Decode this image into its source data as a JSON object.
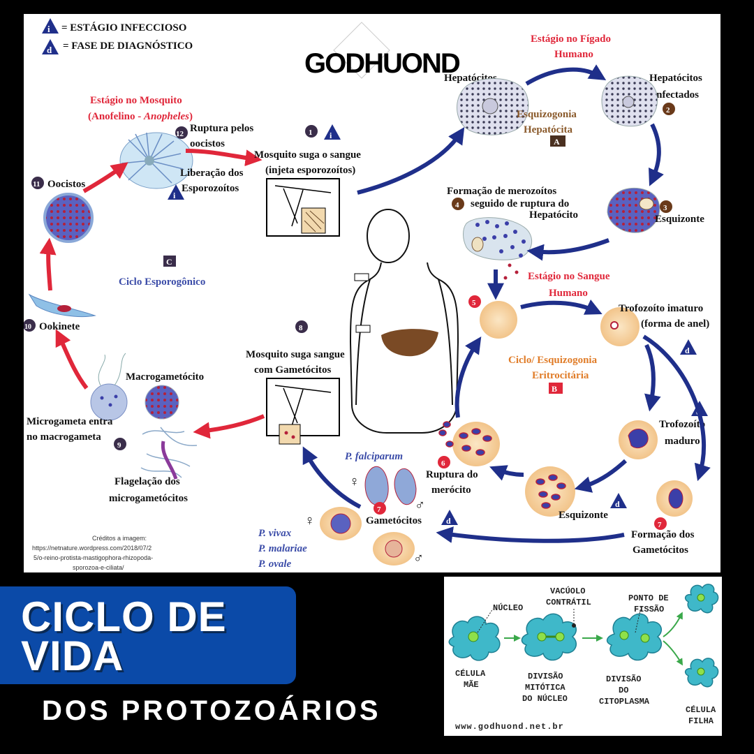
{
  "legend": {
    "infectious": "= ESTÁGIO INFECCIOSO",
    "diagnostic": "= FASE DE DIAGNÓSTICO",
    "i_glyph": "i",
    "d_glyph": "d"
  },
  "logo": "GODHUOND",
  "mosquito_stage": {
    "title": "Estágio no Mosquito",
    "subtitle_prefix": "(Anofelino - ",
    "subtitle_italic": "Anopheles",
    "subtitle_suffix": ")"
  },
  "liver_stage": {
    "line1": "Estágio no Fígado",
    "line2": "Humano"
  },
  "blood_stage": {
    "line1": "Estágio no Sangue",
    "line2": "Humano"
  },
  "labels": {
    "hepatocitos": "Hepatócitos",
    "hepatocitos_inf_1": "Hepatócitos",
    "hepatocitos_inf_2": "infectados",
    "esquizogonia_1": "Esquizogonia",
    "esquizogonia_2": "Hepatócita",
    "marker_a": "A",
    "merozoitos_1": "Formação de merozoítos",
    "merozoitos_2": "seguido de ruptura do",
    "merozoitos_3": "Hepatócito",
    "esquizonte": "Esquizonte",
    "suga_1": "Mosquito suga o sangue",
    "suga_2": "(injeta esporozoítos)",
    "ruptura_oocistos_1": "Ruptura pelos",
    "ruptura_oocistos_2": "oocistos",
    "liberacao_1": "Liberação dos",
    "liberacao_2": "Esporozoítos",
    "oocistos": "Oocistos",
    "marker_c": "C",
    "ciclo_esporogonico": "Ciclo Esporogônico",
    "ookinete": "Ookinete",
    "trofozoito_imaturo_1": "Trofozoíto imaturo",
    "trofozoito_imaturo_2": "(forma de anel)",
    "ciclo_eritro_1": "Ciclo/ Esquizogonia",
    "ciclo_eritro_2": "Eritrocitária",
    "marker_b": "B",
    "suga_gam_1": "Mosquito suga sangue",
    "suga_gam_2": "com Gametócitos",
    "macrogametocito": "Macrogametócito",
    "microgameta_1": "Microgameta entra",
    "microgameta_2": "no macrogameta",
    "trofozoito_maduro_1": "Trofozoíto",
    "trofozoito_maduro_2": "maduro",
    "falciparum": "P. falciparum",
    "ruptura_merocito_1": "Ruptura do",
    "ruptura_merocito_2": "merócito",
    "flagelacao_1": "Flagelação dos",
    "flagelacao_2": "microgametócitos",
    "esquizonte_blood": "Esquizonte",
    "gametocitos": "Gametócitos",
    "formacao_gam_1": "Formação dos",
    "formacao_gam_2": "Gametócitos",
    "vivax": "P. vivax",
    "malariae": "P. malariae",
    "ovale": "P. ovale"
  },
  "numbers": {
    "n1": "1",
    "n2": "2",
    "n3": "3",
    "n4": "4",
    "n5": "5",
    "n6": "6",
    "n7a": "7",
    "n7b": "7",
    "n8": "8",
    "n9": "9",
    "n10": "10",
    "n11": "11",
    "n12": "12"
  },
  "credits": [
    "Créditos a imagem:",
    "https://netnature.wordpress.com/2018/07/2",
    "5/o-reino-protista-mastigophora-rhizopoda-",
    "sporozoa-e-ciliata/"
  ],
  "title": {
    "line1": "CICLO DE",
    "line2": "VIDA",
    "subtitle": "DOS PROTOZOÁRIOS"
  },
  "inset": {
    "nucleo": "NÚCLEO",
    "vacuolo_1": "VACÚOLO",
    "vacuolo_2": "CONTRÁTIL",
    "ponto_1": "PONTO DE",
    "ponto_2": "FISSÃO",
    "celula_mae_1": "CÉLULA",
    "celula_mae_2": "MÃE",
    "div_mit_1": "DIVISÃO",
    "div_mit_2": "MITÓTICA",
    "div_mit_3": "DO NÚCLEO",
    "div_cit_1": "DIVISÃO",
    "div_cit_2": "DO",
    "div_cit_3": "CITOPLASMA",
    "celula_filha_1": "CÉLULA",
    "celula_filha_2": "FILHA",
    "site": "www.godhuond.net.br"
  },
  "colors": {
    "accent_blue": "#0b4aa8",
    "navy_arrow": "#1f2f8a",
    "red_arrow": "#e0273a",
    "cell_cyan": "#3fb8c9"
  }
}
